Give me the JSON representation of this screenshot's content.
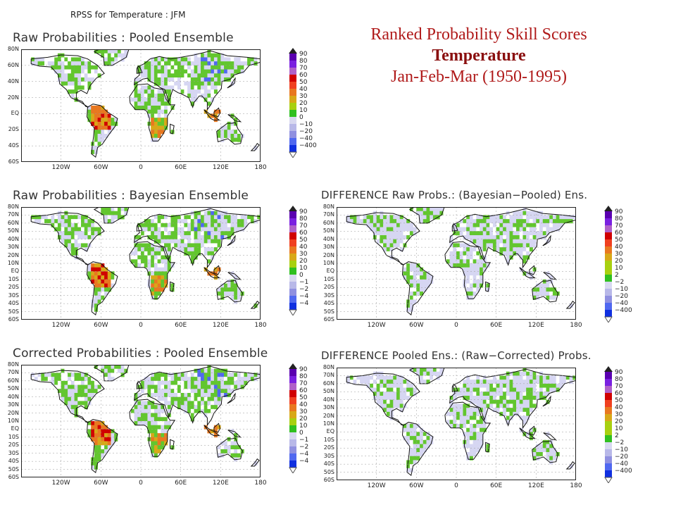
{
  "heading": {
    "line1": "Ranked Probability Skill Scores",
    "line2": "Temperature",
    "line3": "Jan-Feb-Mar (1950-1995)"
  },
  "figure_title": "RPSS for Temperature : JFM",
  "panels": [
    {
      "id": "raw-pooled",
      "title": "Raw Probabilities : Pooled Ensemble",
      "lat_labels": [
        "80N",
        "60N",
        "40N",
        "20N",
        "EQ",
        "20S",
        "40S",
        "60S"
      ],
      "lon_labels": [
        "120W",
        "60W",
        "0",
        "60E",
        "120E",
        "180"
      ],
      "colorbar": [
        "90",
        "80",
        "70",
        "60",
        "50",
        "40",
        "30",
        "20",
        "10",
        "0",
        "−10",
        "−20",
        "−40",
        "−400"
      ]
    },
    {
      "id": "raw-bayesian",
      "title": "Raw Probabilities : Bayesian Ensemble",
      "lat_labels": [
        "80N",
        "70N",
        "60N",
        "50N",
        "40N",
        "30N",
        "20N",
        "10N",
        "EQ",
        "10S",
        "20S",
        "30S",
        "40S",
        "50S",
        "60S"
      ],
      "lon_labels": [
        "120W",
        "60W",
        "0",
        "60E",
        "120E",
        "180"
      ],
      "colorbar": [
        "90",
        "80",
        "70",
        "60",
        "50",
        "40",
        "30",
        "20",
        "10",
        "0",
        "−1",
        "−2",
        "−4",
        "−4"
      ]
    },
    {
      "id": "diff-bayes-pooled",
      "title": "DIFFERENCE Raw Probs.: (Bayesian−Pooled) Ens.",
      "lat_labels": [
        "80N",
        "70N",
        "60N",
        "50N",
        "40N",
        "30N",
        "20N",
        "10N",
        "EQ",
        "10S",
        "20S",
        "30S",
        "40S",
        "50S",
        "60S"
      ],
      "lon_labels": [
        "120W",
        "60W",
        "0",
        "60E",
        "120E",
        "180"
      ],
      "colorbar": [
        "90",
        "80",
        "70",
        "60",
        "50",
        "40",
        "30",
        "20",
        "10",
        "2",
        "−2",
        "−10",
        "−20",
        "−40",
        "−400"
      ]
    },
    {
      "id": "corrected-pooled",
      "title": "Corrected Probabilities : Pooled Ensemble",
      "lat_labels": [
        "80N",
        "70N",
        "60N",
        "50N",
        "40N",
        "30N",
        "20N",
        "10N",
        "EQ",
        "10S",
        "20S",
        "30S",
        "40S",
        "50S",
        "60S"
      ],
      "lon_labels": [
        "120W",
        "60W",
        "0",
        "60E",
        "120E",
        "180"
      ],
      "colorbar": [
        "90",
        "80",
        "70",
        "60",
        "50",
        "40",
        "30",
        "20",
        "10",
        "0",
        "−1",
        "−2",
        "−4",
        "−4"
      ]
    },
    {
      "id": "diff-raw-corrected",
      "title": "DIFFERENCE Pooled Ens.: (Raw−Corrected) Probs.",
      "lat_labels": [
        "80N",
        "70N",
        "60N",
        "50N",
        "40N",
        "30N",
        "20N",
        "10N",
        "EQ",
        "10S",
        "20S",
        "30S",
        "40S",
        "50S",
        "60S"
      ],
      "lon_labels": [
        "120W",
        "60W",
        "0",
        "60E",
        "120E",
        "180"
      ],
      "colorbar": [
        "90",
        "80",
        "70",
        "60",
        "50",
        "40",
        "30",
        "20",
        "10",
        "2",
        "−2",
        "−10",
        "−20",
        "−40",
        "−400"
      ]
    }
  ],
  "colors": {
    "title_red": "#b01a1a",
    "scale": [
      "#5a00b0",
      "#7a20e0",
      "#b060c8",
      "#d00000",
      "#f04020",
      "#e87820",
      "#d8a818",
      "#a8d010",
      "#30c020",
      "#d8d8f0",
      "#b8b8e8",
      "#9090e0",
      "#5068f0",
      "#1030e0"
    ],
    "land_green": "#62c62e",
    "land_lavender": "#d6d6f2",
    "ocean": "#ffffff"
  }
}
